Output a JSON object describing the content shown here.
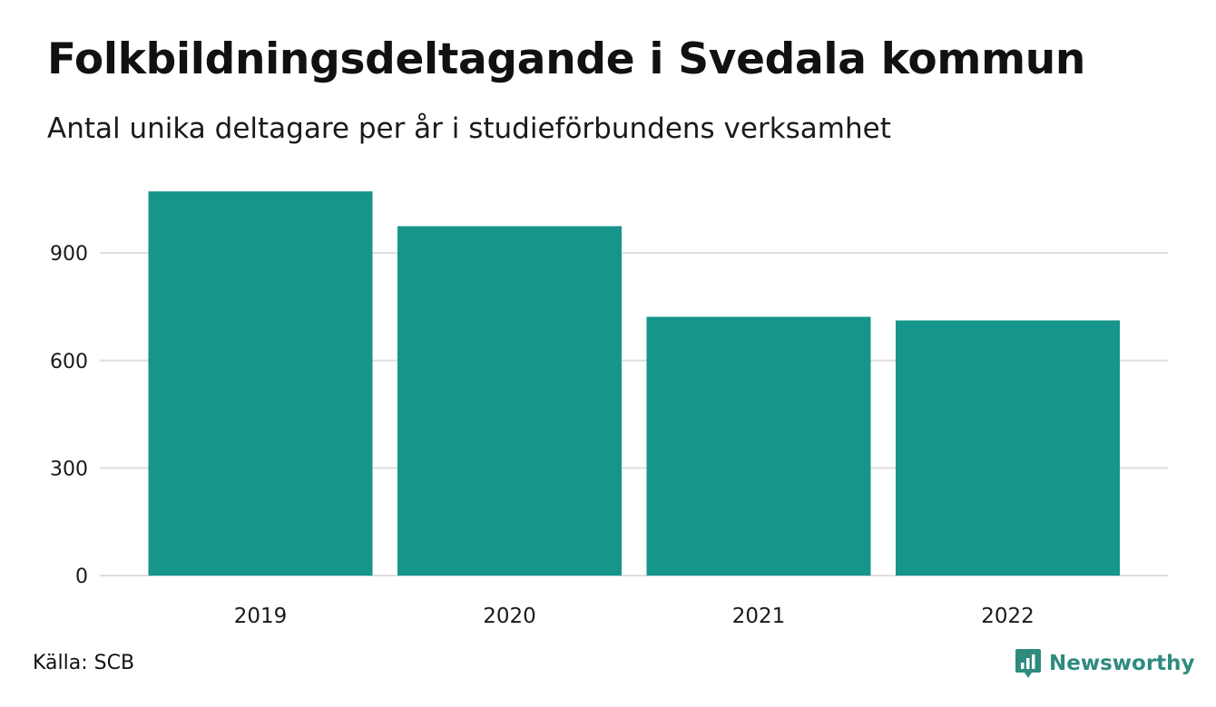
{
  "chart_data": {
    "type": "bar",
    "title": "Folkbildningsdeltagande i Svedala kommun",
    "subtitle": "Antal unika deltagare per år i studieförbundens verksamhet",
    "categories": [
      "2019",
      "2020",
      "2021",
      "2022"
    ],
    "values": [
      1072,
      975,
      722,
      712
    ],
    "yticks": [
      0,
      300,
      600,
      900
    ],
    "ylim": [
      0,
      1080
    ],
    "xlabel": "",
    "ylabel": "",
    "grid": true,
    "bar_color": "#16958a"
  },
  "source": "Källa: SCB",
  "brand": {
    "name": "Newsworthy",
    "icon": "newsworthy-logo-icon",
    "color": "#2e8b7e"
  }
}
